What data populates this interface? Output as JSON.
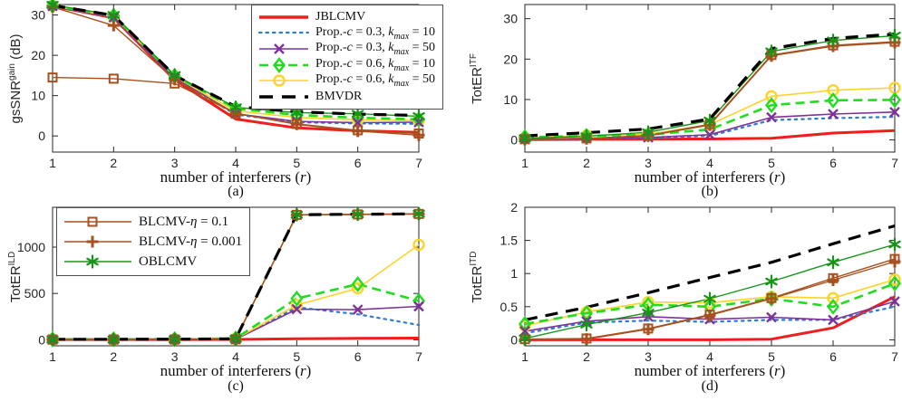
{
  "figure": {
    "background": "#ffffff",
    "axis_color": "#262626",
    "x_values": [
      1,
      2,
      3,
      4,
      5,
      6,
      7
    ]
  },
  "series_styles": {
    "jblcmv": {
      "label": "JBLCMV",
      "color": "#f11c1c",
      "marker": null,
      "line_style": "solid"
    },
    "prop_c03_k10": {
      "label": "Prop.-{c} = 0.3, {k}_{max} = 10",
      "color": "#2e7bd2",
      "marker": null,
      "line_style": "dotted"
    },
    "prop_c03_k50": {
      "label": "Prop.-{c} = 0.3, {k}_{max} = 50",
      "color": "#7d3398",
      "marker": "x",
      "line_style": "solid"
    },
    "prop_c06_k10": {
      "label": "Prop.-{c} = 0.6, {k}_{max} = 10",
      "color": "#1fdd1f",
      "marker": "diamond",
      "line_style": "dashed"
    },
    "prop_c06_k50": {
      "label": "Prop.-{c} = 0.6, {k}_{max} = 50",
      "color": "#ffd32b",
      "marker": "circle",
      "line_style": "solid"
    },
    "bmvdr": {
      "label": "BMVDR",
      "color": "#000000",
      "marker": null,
      "line_style": "long-dash"
    },
    "blcmv_eta01": {
      "label": "BLCMV-{η} = 0.1",
      "color": "#a8511f",
      "marker": "square",
      "line_style": "solid"
    },
    "blcmv_eta001": {
      "label": "BLCMV-{η} = 0.001",
      "color": "#a8511f",
      "marker": "plus",
      "line_style": "solid"
    },
    "oblcmv": {
      "label": "OBLCMV",
      "color": "#189518",
      "marker": "asterisk",
      "line_style": "solid"
    }
  },
  "chart_data": [
    {
      "id": "a",
      "type": "line",
      "caption": "(a)",
      "ylabel": "gsSNR^{gain} (dB)",
      "xlabel": "number of interferers ({r})",
      "xticks": [
        1,
        2,
        3,
        4,
        5,
        6,
        7
      ],
      "yticks": [
        0,
        10,
        20,
        30
      ],
      "xlim": [
        1,
        7
      ],
      "ylim": [
        -4,
        32.6
      ],
      "legend": {
        "position": "top-right",
        "entries": [
          "jblcmv",
          "prop_c03_k10",
          "prop_c03_k50",
          "prop_c06_k10",
          "prop_c06_k50",
          "bmvdr"
        ]
      },
      "series": {
        "jblcmv": [
          32.2,
          29.3,
          13.9,
          4.2,
          2.0,
          1.3,
          0.9
        ],
        "prop_c03_k10": [
          32.2,
          29.4,
          14.3,
          5.3,
          3.4,
          3.1,
          3.0
        ],
        "prop_c03_k50": [
          32.2,
          29.4,
          14.4,
          5.5,
          3.6,
          3.3,
          3.4
        ],
        "prop_c06_k10": [
          32.3,
          29.8,
          14.9,
          6.8,
          5.2,
          4.5,
          4.1
        ],
        "prop_c06_k50": [
          32.3,
          29.6,
          14.7,
          6.2,
          4.6,
          4.0,
          3.8
        ],
        "bmvdr": [
          32.4,
          29.9,
          15.0,
          7.3,
          6.0,
          5.4,
          5.1
        ],
        "blcmv_eta01": [
          14.5,
          14.2,
          13.0,
          5.6,
          3.0,
          1.4,
          0.6
        ],
        "blcmv_eta001": [
          32.0,
          27.4,
          14.0,
          5.6,
          2.9,
          1.2,
          0.2
        ],
        "oblcmv": [
          32.5,
          30.0,
          15.1,
          7.1,
          5.8,
          5.5,
          4.9
        ]
      }
    },
    {
      "id": "b",
      "type": "line",
      "caption": "(b)",
      "ylabel": "TotER^{ITF}",
      "xlabel": "number of interferers ({r})",
      "xticks": [
        1,
        2,
        3,
        4,
        5,
        6,
        7
      ],
      "yticks": [
        0,
        10,
        20,
        30
      ],
      "xlim": [
        1,
        7
      ],
      "ylim": [
        -3,
        33.5
      ],
      "legend": null,
      "series": {
        "jblcmv": [
          0.1,
          0.15,
          0.2,
          0.25,
          0.4,
          1.7,
          2.3
        ],
        "prop_c03_k10": [
          0.1,
          0.3,
          0.5,
          1.0,
          4.9,
          5.4,
          5.7
        ],
        "prop_c03_k50": [
          0.15,
          0.4,
          0.6,
          1.3,
          5.6,
          6.4,
          6.9
        ],
        "prop_c06_k10": [
          0.7,
          1.0,
          1.3,
          2.6,
          8.6,
          9.8,
          9.9
        ],
        "prop_c06_k50": [
          0.5,
          1.1,
          1.4,
          3.8,
          10.8,
          12.3,
          12.9
        ],
        "bmvdr": [
          1.0,
          1.8,
          2.7,
          5.2,
          22.6,
          25.1,
          26.2
        ],
        "blcmv_eta01": [
          0.2,
          0.4,
          1.1,
          3.9,
          21.0,
          23.4,
          24.3
        ],
        "blcmv_eta001": [
          0.1,
          0.3,
          1.0,
          3.7,
          20.8,
          23.2,
          24.1
        ],
        "oblcmv": [
          0.4,
          0.9,
          1.9,
          4.8,
          21.9,
          24.6,
          25.8
        ]
      }
    },
    {
      "id": "c",
      "type": "line",
      "caption": "(c)",
      "ylabel": "TotER^{ILD}",
      "xlabel": "number of interferers ({r})",
      "xticks": [
        1,
        2,
        3,
        4,
        5,
        6,
        7
      ],
      "yticks": [
        0,
        500,
        1000
      ],
      "xlim": [
        1,
        7
      ],
      "ylim": [
        -65,
        1430
      ],
      "legend": {
        "position": "top-left",
        "entries": [
          "blcmv_eta01",
          "blcmv_eta001",
          "oblcmv"
        ]
      },
      "series": {
        "jblcmv": [
          2,
          2,
          2,
          3,
          10,
          15,
          18
        ],
        "prop_c03_k10": [
          2,
          3,
          3,
          8,
          350,
          275,
          160
        ],
        "prop_c03_k50": [
          2,
          3,
          3,
          5,
          330,
          325,
          360
        ],
        "prop_c06_k10": [
          5,
          5,
          6,
          15,
          445,
          600,
          420
        ],
        "prop_c06_k50": [
          4,
          4,
          5,
          10,
          375,
          555,
          1025
        ],
        "bmvdr": [
          5,
          5,
          6,
          10,
          1350,
          1355,
          1360
        ],
        "blcmv_eta01": [
          2,
          2,
          3,
          5,
          1348,
          1353,
          1358
        ],
        "blcmv_eta001": [
          2,
          2,
          3,
          5,
          1348,
          1353,
          1358
        ],
        "oblcmv": [
          3,
          3,
          4,
          10,
          1350,
          1355,
          1360
        ]
      }
    },
    {
      "id": "d",
      "type": "line",
      "caption": "(d)",
      "ylabel": "TotER^{ITD}",
      "xlabel": "number of interferers ({r})",
      "xticks": [
        1,
        2,
        3,
        4,
        5,
        6,
        7
      ],
      "yticks": [
        0,
        0.5,
        1,
        1.5,
        2
      ],
      "xlim": [
        1,
        7
      ],
      "ylim": [
        -0.09,
        2.0
      ],
      "legend": null,
      "series": {
        "jblcmv": [
          0.0,
          0.0,
          0.0,
          0.0,
          0.01,
          0.18,
          0.65
        ],
        "prop_c03_k10": [
          0.1,
          0.26,
          0.29,
          0.27,
          0.3,
          0.3,
          0.5
        ],
        "prop_c03_k50": [
          0.13,
          0.28,
          0.35,
          0.31,
          0.34,
          0.3,
          0.58
        ],
        "prop_c06_k10": [
          0.24,
          0.4,
          0.53,
          0.5,
          0.62,
          0.5,
          0.85
        ],
        "prop_c06_k50": [
          0.21,
          0.42,
          0.57,
          0.56,
          0.65,
          0.63,
          0.91
        ],
        "bmvdr": [
          0.3,
          0.49,
          0.71,
          0.94,
          1.17,
          1.45,
          1.72
        ],
        "blcmv_eta01": [
          0.01,
          0.02,
          0.17,
          0.38,
          0.63,
          0.93,
          1.22
        ],
        "blcmv_eta001": [
          0.0,
          0.01,
          0.16,
          0.37,
          0.62,
          0.9,
          1.18
        ],
        "oblcmv": [
          0.02,
          0.23,
          0.41,
          0.62,
          0.88,
          1.17,
          1.44
        ]
      }
    }
  ]
}
